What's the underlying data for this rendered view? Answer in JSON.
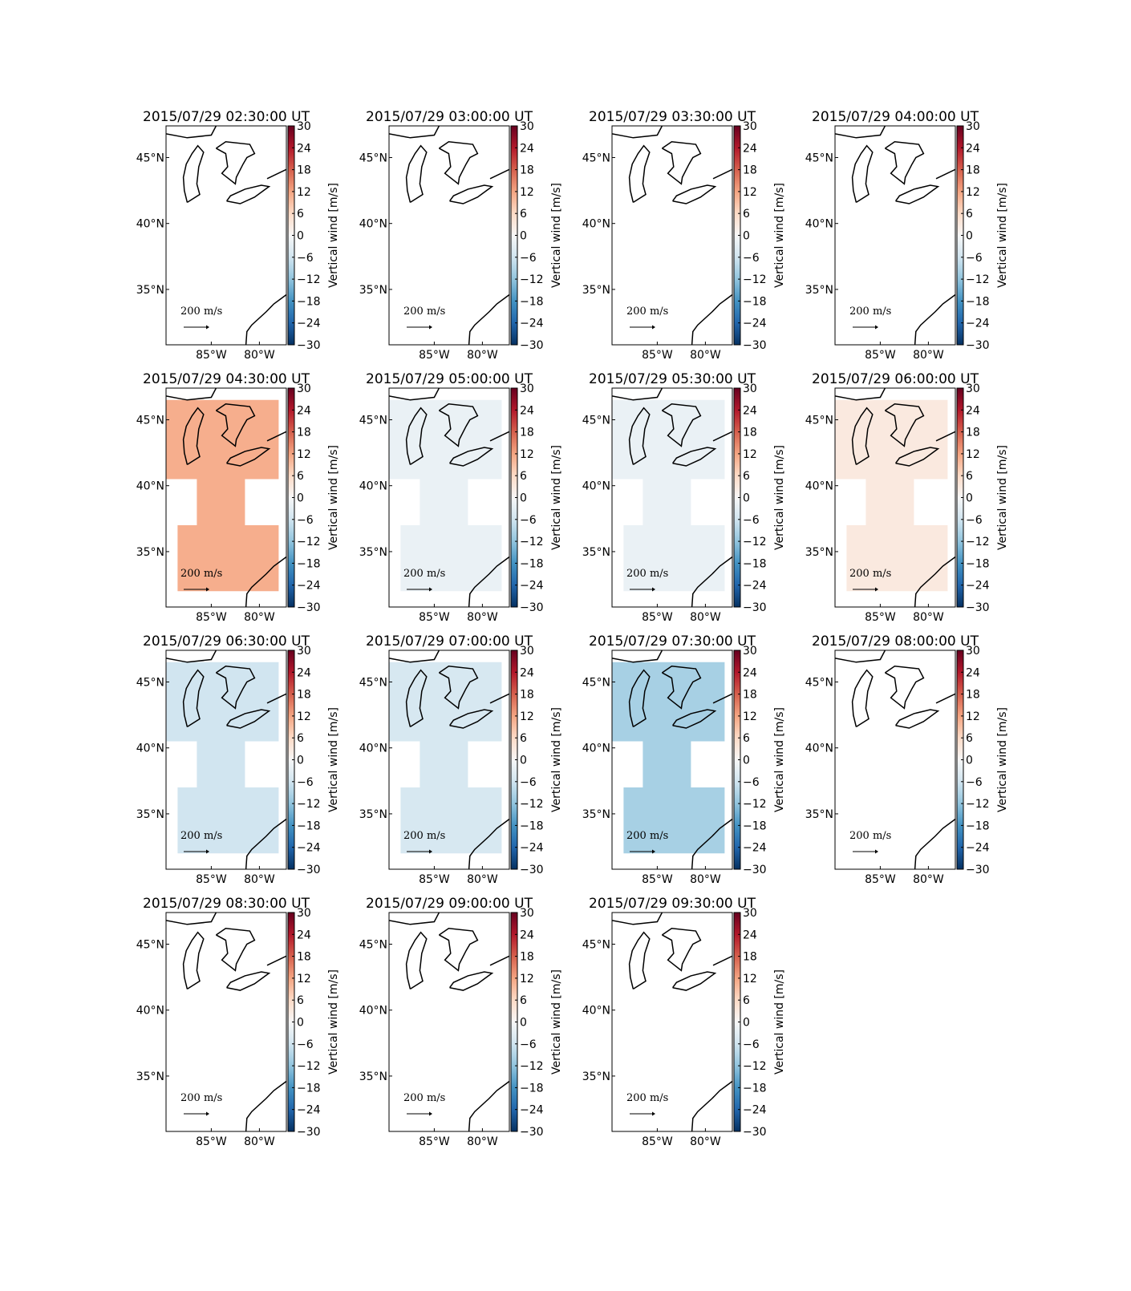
{
  "chart_data": [
    {
      "type": "map",
      "title": "2015/07/29 02:30:00 UT",
      "value": null,
      "xlim": [
        -89.7,
        -77.2
      ],
      "ylim": [
        30.8,
        47.4
      ],
      "xticks": [
        {
          "value": -85,
          "label": "85°W"
        },
        {
          "value": -80,
          "label": "80°W"
        }
      ],
      "yticks": [
        {
          "value": 35,
          "label": "35°N"
        },
        {
          "value": 40,
          "label": "40°N"
        },
        {
          "value": 45,
          "label": "45°N"
        }
      ],
      "colorbar": {
        "label": "Vertical wind [m/s]",
        "lim": [
          -30,
          30
        ],
        "ticks": [
          {
            "value": -30,
            "label": "−30"
          },
          {
            "value": -24,
            "label": "−24"
          },
          {
            "value": -18,
            "label": "−18"
          },
          {
            "value": -12,
            "label": "−12"
          },
          {
            "value": -6,
            "label": "−6"
          },
          0,
          6,
          12,
          18,
          24,
          30
        ]
      },
      "quiver_key": "200 m/s"
    },
    {
      "type": "map",
      "title": "2015/07/29 03:00:00 UT",
      "value": null,
      "xlim": [
        -89.7,
        -77.2
      ],
      "ylim": [
        30.8,
        47.4
      ],
      "xticks": [
        {
          "value": -85,
          "label": "85°W"
        },
        {
          "value": -80,
          "label": "80°W"
        }
      ],
      "yticks": [
        {
          "value": 35,
          "label": "35°N"
        },
        {
          "value": 40,
          "label": "40°N"
        },
        {
          "value": 45,
          "label": "45°N"
        }
      ],
      "colorbar": {
        "label": "Vertical wind [m/s]",
        "lim": [
          -30,
          30
        ],
        "ticks": [
          {
            "value": -30,
            "label": "−30"
          },
          {
            "value": -24,
            "label": "−24"
          },
          {
            "value": -18,
            "label": "−18"
          },
          {
            "value": -12,
            "label": "−12"
          },
          {
            "value": -6,
            "label": "−6"
          },
          0,
          6,
          12,
          18,
          24,
          30
        ]
      },
      "quiver_key": "200 m/s"
    },
    {
      "type": "map",
      "title": "2015/07/29 03:30:00 UT",
      "value": null,
      "xlim": [
        -89.7,
        -77.2
      ],
      "ylim": [
        30.8,
        47.4
      ],
      "xticks": [
        {
          "value": -85,
          "label": "85°W"
        },
        {
          "value": -80,
          "label": "80°W"
        }
      ],
      "yticks": [
        {
          "value": 35,
          "label": "35°N"
        },
        {
          "value": 40,
          "label": "40°N"
        },
        {
          "value": 45,
          "label": "45°N"
        }
      ],
      "colorbar": {
        "label": "Vertical wind [m/s]",
        "lim": [
          -30,
          30
        ],
        "ticks": [
          {
            "value": -30,
            "label": "−30"
          },
          {
            "value": -24,
            "label": "−24"
          },
          {
            "value": -18,
            "label": "−18"
          },
          {
            "value": -12,
            "label": "−12"
          },
          {
            "value": -6,
            "label": "−6"
          },
          0,
          6,
          12,
          18,
          24,
          30
        ]
      },
      "quiver_key": "200 m/s"
    },
    {
      "type": "map",
      "title": "2015/07/29 04:00:00 UT",
      "value": null,
      "xlim": [
        -89.7,
        -77.2
      ],
      "ylim": [
        30.8,
        47.4
      ],
      "xticks": [
        {
          "value": -85,
          "label": "85°W"
        },
        {
          "value": -80,
          "label": "80°W"
        }
      ],
      "yticks": [
        {
          "value": 35,
          "label": "35°N"
        },
        {
          "value": 40,
          "label": "40°N"
        },
        {
          "value": 45,
          "label": "45°N"
        }
      ],
      "colorbar": {
        "label": "Vertical wind [m/s]",
        "lim": [
          -30,
          30
        ],
        "ticks": [
          {
            "value": -30,
            "label": "−30"
          },
          {
            "value": -24,
            "label": "−24"
          },
          {
            "value": -18,
            "label": "−18"
          },
          {
            "value": -12,
            "label": "−12"
          },
          {
            "value": -6,
            "label": "−6"
          },
          0,
          6,
          12,
          18,
          24,
          30
        ]
      },
      "quiver_key": "200 m/s"
    },
    {
      "type": "map",
      "title": "2015/07/29 04:30:00 UT",
      "value": 11,
      "xlim": [
        -89.7,
        -77.2
      ],
      "ylim": [
        30.8,
        47.4
      ],
      "xticks": [
        {
          "value": -85,
          "label": "85°W"
        },
        {
          "value": -80,
          "label": "80°W"
        }
      ],
      "yticks": [
        {
          "value": 35,
          "label": "35°N"
        },
        {
          "value": 40,
          "label": "40°N"
        },
        {
          "value": 45,
          "label": "45°N"
        }
      ],
      "colorbar": {
        "label": "Vertical wind [m/s]",
        "lim": [
          -30,
          30
        ],
        "ticks": [
          {
            "value": -30,
            "label": "−30"
          },
          {
            "value": -24,
            "label": "−24"
          },
          {
            "value": -18,
            "label": "−18"
          },
          {
            "value": -12,
            "label": "−12"
          },
          {
            "value": -6,
            "label": "−6"
          },
          0,
          6,
          12,
          18,
          24,
          30
        ]
      },
      "quiver_key": "200 m/s"
    },
    {
      "type": "map",
      "title": "2015/07/29 05:00:00 UT",
      "value": -2,
      "xlim": [
        -89.7,
        -77.2
      ],
      "ylim": [
        30.8,
        47.4
      ],
      "xticks": [
        {
          "value": -85,
          "label": "85°W"
        },
        {
          "value": -80,
          "label": "80°W"
        }
      ],
      "yticks": [
        {
          "value": 35,
          "label": "35°N"
        },
        {
          "value": 40,
          "label": "40°N"
        },
        {
          "value": 45,
          "label": "45°N"
        }
      ],
      "colorbar": {
        "label": "Vertical wind [m/s]",
        "lim": [
          -30,
          30
        ],
        "ticks": [
          {
            "value": -30,
            "label": "−30"
          },
          {
            "value": -24,
            "label": "−24"
          },
          {
            "value": -18,
            "label": "−18"
          },
          {
            "value": -12,
            "label": "−12"
          },
          {
            "value": -6,
            "label": "−6"
          },
          0,
          6,
          12,
          18,
          24,
          30
        ]
      },
      "quiver_key": "200 m/s"
    },
    {
      "type": "map",
      "title": "2015/07/29 05:30:00 UT",
      "value": -2,
      "xlim": [
        -89.7,
        -77.2
      ],
      "ylim": [
        30.8,
        47.4
      ],
      "xticks": [
        {
          "value": -85,
          "label": "85°W"
        },
        {
          "value": -80,
          "label": "80°W"
        }
      ],
      "yticks": [
        {
          "value": 35,
          "label": "35°N"
        },
        {
          "value": 40,
          "label": "40°N"
        },
        {
          "value": 45,
          "label": "45°N"
        }
      ],
      "colorbar": {
        "label": "Vertical wind [m/s]",
        "lim": [
          -30,
          30
        ],
        "ticks": [
          {
            "value": -30,
            "label": "−30"
          },
          {
            "value": -24,
            "label": "−24"
          },
          {
            "value": -18,
            "label": "−18"
          },
          {
            "value": -12,
            "label": "−12"
          },
          {
            "value": -6,
            "label": "−6"
          },
          0,
          6,
          12,
          18,
          24,
          30
        ]
      },
      "quiver_key": "200 m/s"
    },
    {
      "type": "map",
      "title": "2015/07/29 06:00:00 UT",
      "value": 3,
      "xlim": [
        -89.7,
        -77.2
      ],
      "ylim": [
        30.8,
        47.4
      ],
      "xticks": [
        {
          "value": -85,
          "label": "85°W"
        },
        {
          "value": -80,
          "label": "80°W"
        }
      ],
      "yticks": [
        {
          "value": 35,
          "label": "35°N"
        },
        {
          "value": 40,
          "label": "40°N"
        },
        {
          "value": 45,
          "label": "45°N"
        }
      ],
      "colorbar": {
        "label": "Vertical wind [m/s]",
        "lim": [
          -30,
          30
        ],
        "ticks": [
          {
            "value": -30,
            "label": "−30"
          },
          {
            "value": -24,
            "label": "−24"
          },
          {
            "value": -18,
            "label": "−18"
          },
          {
            "value": -12,
            "label": "−12"
          },
          {
            "value": -6,
            "label": "−6"
          },
          0,
          6,
          12,
          18,
          24,
          30
        ]
      },
      "quiver_key": "200 m/s"
    },
    {
      "type": "map",
      "title": "2015/07/29 06:30:00 UT",
      "value": -6,
      "xlim": [
        -89.7,
        -77.2
      ],
      "ylim": [
        30.8,
        47.4
      ],
      "xticks": [
        {
          "value": -85,
          "label": "85°W"
        },
        {
          "value": -80,
          "label": "80°W"
        }
      ],
      "yticks": [
        {
          "value": 35,
          "label": "35°N"
        },
        {
          "value": 40,
          "label": "40°N"
        },
        {
          "value": 45,
          "label": "45°N"
        }
      ],
      "colorbar": {
        "label": "Vertical wind [m/s]",
        "lim": [
          -30,
          30
        ],
        "ticks": [
          {
            "value": -30,
            "label": "−30"
          },
          {
            "value": -24,
            "label": "−24"
          },
          {
            "value": -18,
            "label": "−18"
          },
          {
            "value": -12,
            "label": "−12"
          },
          {
            "value": -6,
            "label": "−6"
          },
          0,
          6,
          12,
          18,
          24,
          30
        ]
      },
      "quiver_key": "200 m/s"
    },
    {
      "type": "map",
      "title": "2015/07/29 07:00:00 UT",
      "value": -5,
      "xlim": [
        -89.7,
        -77.2
      ],
      "ylim": [
        30.8,
        47.4
      ],
      "xticks": [
        {
          "value": -85,
          "label": "85°W"
        },
        {
          "value": -80,
          "label": "80°W"
        }
      ],
      "yticks": [
        {
          "value": 35,
          "label": "35°N"
        },
        {
          "value": 40,
          "label": "40°N"
        },
        {
          "value": 45,
          "label": "45°N"
        }
      ],
      "colorbar": {
        "label": "Vertical wind [m/s]",
        "lim": [
          -30,
          30
        ],
        "ticks": [
          {
            "value": -30,
            "label": "−30"
          },
          {
            "value": -24,
            "label": "−24"
          },
          {
            "value": -18,
            "label": "−18"
          },
          {
            "value": -12,
            "label": "−12"
          },
          {
            "value": -6,
            "label": "−6"
          },
          0,
          6,
          12,
          18,
          24,
          30
        ]
      },
      "quiver_key": "200 m/s"
    },
    {
      "type": "map",
      "title": "2015/07/29 07:30:00 UT",
      "value": -10,
      "xlim": [
        -89.7,
        -77.2
      ],
      "ylim": [
        30.8,
        47.4
      ],
      "xticks": [
        {
          "value": -85,
          "label": "85°W"
        },
        {
          "value": -80,
          "label": "80°W"
        }
      ],
      "yticks": [
        {
          "value": 35,
          "label": "35°N"
        },
        {
          "value": 40,
          "label": "40°N"
        },
        {
          "value": 45,
          "label": "45°N"
        }
      ],
      "colorbar": {
        "label": "Vertical wind [m/s]",
        "lim": [
          -30,
          30
        ],
        "ticks": [
          {
            "value": -30,
            "label": "−30"
          },
          {
            "value": -24,
            "label": "−24"
          },
          {
            "value": -18,
            "label": "−18"
          },
          {
            "value": -12,
            "label": "−12"
          },
          {
            "value": -6,
            "label": "−6"
          },
          0,
          6,
          12,
          18,
          24,
          30
        ]
      },
      "quiver_key": "200 m/s"
    },
    {
      "type": "map",
      "title": "2015/07/29 08:00:00 UT",
      "value": null,
      "xlim": [
        -89.7,
        -77.2
      ],
      "ylim": [
        30.8,
        47.4
      ],
      "xticks": [
        {
          "value": -85,
          "label": "85°W"
        },
        {
          "value": -80,
          "label": "80°W"
        }
      ],
      "yticks": [
        {
          "value": 35,
          "label": "35°N"
        },
        {
          "value": 40,
          "label": "40°N"
        },
        {
          "value": 45,
          "label": "45°N"
        }
      ],
      "colorbar": {
        "label": "Vertical wind [m/s]",
        "lim": [
          -30,
          30
        ],
        "ticks": [
          {
            "value": -30,
            "label": "−30"
          },
          {
            "value": -24,
            "label": "−24"
          },
          {
            "value": -18,
            "label": "−18"
          },
          {
            "value": -12,
            "label": "−12"
          },
          {
            "value": -6,
            "label": "−6"
          },
          0,
          6,
          12,
          18,
          24,
          30
        ]
      },
      "quiver_key": "200 m/s"
    },
    {
      "type": "map",
      "title": "2015/07/29 08:30:00 UT",
      "value": null,
      "xlim": [
        -89.7,
        -77.2
      ],
      "ylim": [
        30.8,
        47.4
      ],
      "xticks": [
        {
          "value": -85,
          "label": "85°W"
        },
        {
          "value": -80,
          "label": "80°W"
        }
      ],
      "yticks": [
        {
          "value": 35,
          "label": "35°N"
        },
        {
          "value": 40,
          "label": "40°N"
        },
        {
          "value": 45,
          "label": "45°N"
        }
      ],
      "colorbar": {
        "label": "Vertical wind [m/s]",
        "lim": [
          -30,
          30
        ],
        "ticks": [
          {
            "value": -30,
            "label": "−30"
          },
          {
            "value": -24,
            "label": "−24"
          },
          {
            "value": -18,
            "label": "−18"
          },
          {
            "value": -12,
            "label": "−12"
          },
          {
            "value": -6,
            "label": "−6"
          },
          0,
          6,
          12,
          18,
          24,
          30
        ]
      },
      "quiver_key": "200 m/s"
    },
    {
      "type": "map",
      "title": "2015/07/29 09:00:00 UT",
      "value": null,
      "xlim": [
        -89.7,
        -77.2
      ],
      "ylim": [
        30.8,
        47.4
      ],
      "xticks": [
        {
          "value": -85,
          "label": "85°W"
        },
        {
          "value": -80,
          "label": "80°W"
        }
      ],
      "yticks": [
        {
          "value": 35,
          "label": "35°N"
        },
        {
          "value": 40,
          "label": "40°N"
        },
        {
          "value": 45,
          "label": "45°N"
        }
      ],
      "colorbar": {
        "label": "Vertical wind [m/s]",
        "lim": [
          -30,
          30
        ],
        "ticks": [
          {
            "value": -30,
            "label": "−30"
          },
          {
            "value": -24,
            "label": "−24"
          },
          {
            "value": -18,
            "label": "−18"
          },
          {
            "value": -12,
            "label": "−12"
          },
          {
            "value": -6,
            "label": "−6"
          },
          0,
          6,
          12,
          18,
          24,
          30
        ]
      },
      "quiver_key": "200 m/s"
    },
    {
      "type": "map",
      "title": "2015/07/29 09:30:00 UT",
      "value": null,
      "xlim": [
        -89.7,
        -77.2
      ],
      "ylim": [
        30.8,
        47.4
      ],
      "xticks": [
        {
          "value": -85,
          "label": "85°W"
        },
        {
          "value": -80,
          "label": "80°W"
        }
      ],
      "yticks": [
        {
          "value": 35,
          "label": "35°N"
        },
        {
          "value": 40,
          "label": "40°N"
        },
        {
          "value": 45,
          "label": "45°N"
        }
      ],
      "colorbar": {
        "label": "Vertical wind [m/s]",
        "lim": [
          -30,
          30
        ],
        "ticks": [
          {
            "value": -30,
            "label": "−30"
          },
          {
            "value": -24,
            "label": "−24"
          },
          {
            "value": -18,
            "label": "−18"
          },
          {
            "value": -12,
            "label": "−12"
          },
          {
            "value": -6,
            "label": "−6"
          },
          0,
          6,
          12,
          18,
          24,
          30
        ]
      },
      "quiver_key": "200 m/s"
    }
  ]
}
